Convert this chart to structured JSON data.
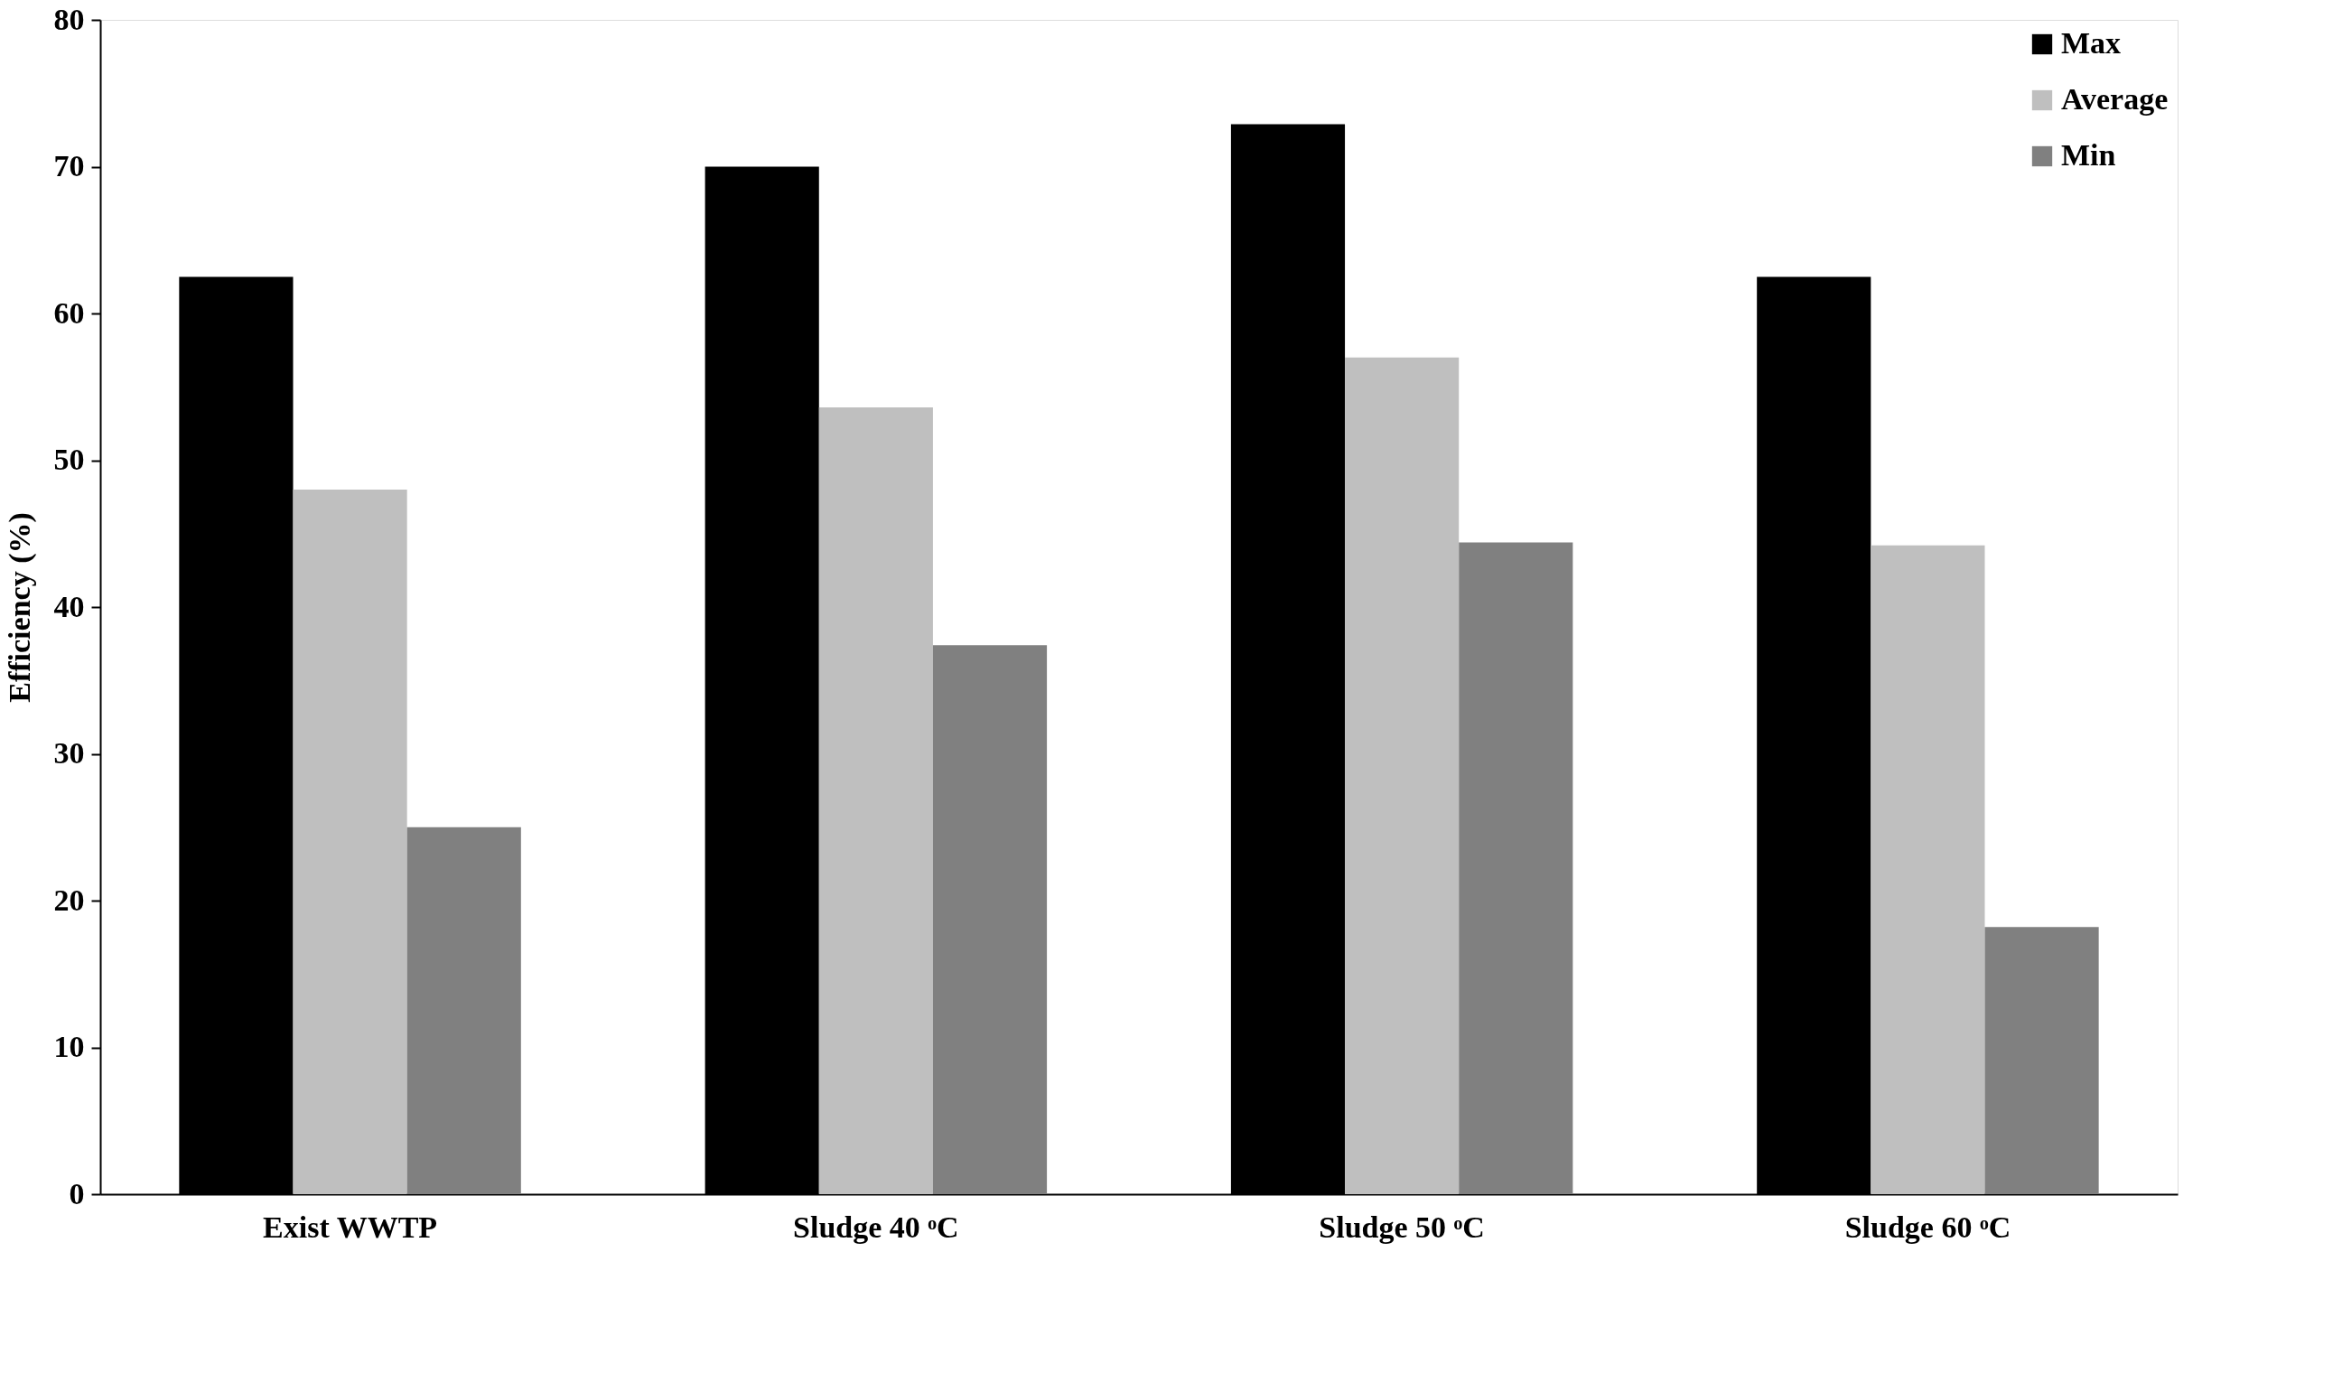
{
  "chart_data": {
    "type": "bar",
    "ylabel": "Efficiency (%)",
    "categories": [
      "Exist WWTP",
      "Sludge 40 ᵒC",
      "Sludge 50 ᵒC",
      "Sludge 60 ᵒC"
    ],
    "series": [
      {
        "name": "Max",
        "color": "#000000",
        "values": [
          62.5,
          70,
          72.9,
          62.5
        ]
      },
      {
        "name": "Average",
        "color": "#bfbfbf",
        "values": [
          48,
          53.6,
          57,
          44.2
        ]
      },
      {
        "name": "Min",
        "color": "#808080",
        "values": [
          25,
          37.4,
          44.4,
          18.2
        ]
      }
    ],
    "ylim": [
      0,
      80
    ],
    "yticks": [
      0,
      10,
      20,
      30,
      40,
      50,
      60,
      70,
      80
    ],
    "grid": false,
    "legend": "top right"
  }
}
